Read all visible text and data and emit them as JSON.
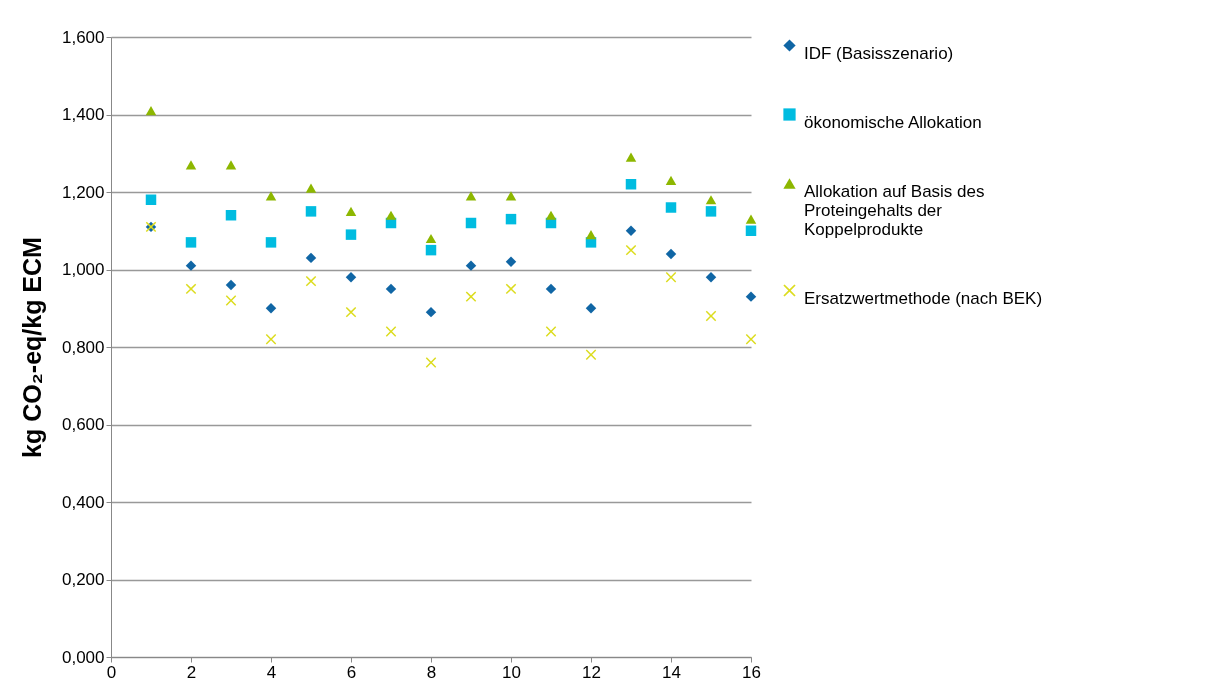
{
  "chart_data": {
    "type": "scatter",
    "ylabel": "kg CO₂-eq/kg ECM",
    "x": [
      1,
      2,
      3,
      4,
      5,
      6,
      7,
      8,
      9,
      10,
      11,
      12,
      13,
      14,
      15,
      16
    ],
    "xlim": [
      0,
      16
    ],
    "xticks": [
      0,
      2,
      4,
      6,
      8,
      10,
      12,
      14,
      16
    ],
    "ylim": [
      0,
      1.6
    ],
    "yticks": [
      {
        "value": 0,
        "label": "0,000"
      },
      {
        "value": 0.2,
        "label": "0,200"
      },
      {
        "value": 0.4,
        "label": "0,400"
      },
      {
        "value": 0.6,
        "label": "0,600"
      },
      {
        "value": 0.8,
        "label": "0,800"
      },
      {
        "value": 1.0,
        "label": "1,000"
      },
      {
        "value": 1.2,
        "label": "1,200"
      },
      {
        "value": 1.4,
        "label": "1,400"
      },
      {
        "value": 1.6,
        "label": "1,600"
      }
    ],
    "grid": "y",
    "legend": "right",
    "series": [
      {
        "name": "IDF (Basisszenario)",
        "color": "#1066a5",
        "marker": "diamond",
        "values": [
          1.11,
          1.01,
          0.96,
          0.9,
          1.03,
          0.98,
          0.95,
          0.89,
          1.01,
          1.02,
          0.95,
          0.9,
          1.1,
          1.04,
          0.98,
          0.93
        ]
      },
      {
        "name": "ökonomische Allokation",
        "color": "#00bce0",
        "marker": "square",
        "values": [
          1.18,
          1.07,
          1.14,
          1.07,
          1.15,
          1.09,
          1.12,
          1.05,
          1.12,
          1.13,
          1.12,
          1.07,
          1.22,
          1.16,
          1.15,
          1.1
        ]
      },
      {
        "name": "Allokation auf Basis des Proteingehalts der Koppelprodukte",
        "color": "#8db700",
        "marker": "triangle",
        "values": [
          1.41,
          1.27,
          1.27,
          1.19,
          1.21,
          1.15,
          1.14,
          1.08,
          1.19,
          1.19,
          1.14,
          1.09,
          1.29,
          1.23,
          1.18,
          1.13
        ]
      },
      {
        "name": "Ersatzwertmethode (nach BEK)",
        "color": "#dcdc1e",
        "marker": "cross",
        "values": [
          1.11,
          0.95,
          0.92,
          0.82,
          0.97,
          0.89,
          0.84,
          0.76,
          0.93,
          0.95,
          0.84,
          0.78,
          1.05,
          0.98,
          0.88,
          0.82
        ]
      }
    ]
  }
}
